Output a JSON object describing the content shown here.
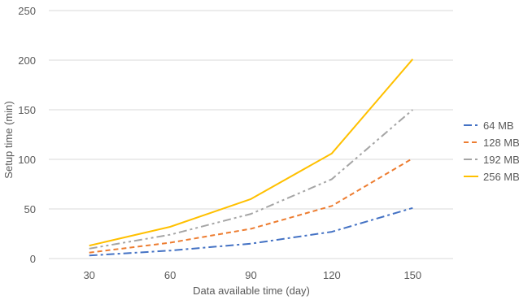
{
  "chart_data": {
    "type": "line",
    "xlabel": "Data available time (day)",
    "ylabel": "Setup time (min)",
    "categories": [
      "30",
      "60",
      "90",
      "120",
      "150"
    ],
    "ylim": [
      0,
      250
    ],
    "yticks": [
      0,
      50,
      100,
      150,
      200,
      250
    ],
    "grid": true,
    "legend": "right",
    "series": [
      {
        "name": "64 MB",
        "values": [
          3,
          8,
          15,
          27,
          51
        ],
        "color": "#4472C4",
        "dash": "dash-dot"
      },
      {
        "name": "128 MB",
        "values": [
          6,
          16,
          30,
          53,
          101
        ],
        "color": "#ED7D31",
        "dash": "dashed"
      },
      {
        "name": "192 MB",
        "values": [
          10,
          24,
          45,
          80,
          150
        ],
        "color": "#A5A5A5",
        "dash": "dash-dot-dot"
      },
      {
        "name": "256 MB",
        "values": [
          13,
          32,
          60,
          106,
          201
        ],
        "color": "#FFC000",
        "dash": "solid"
      }
    ]
  }
}
